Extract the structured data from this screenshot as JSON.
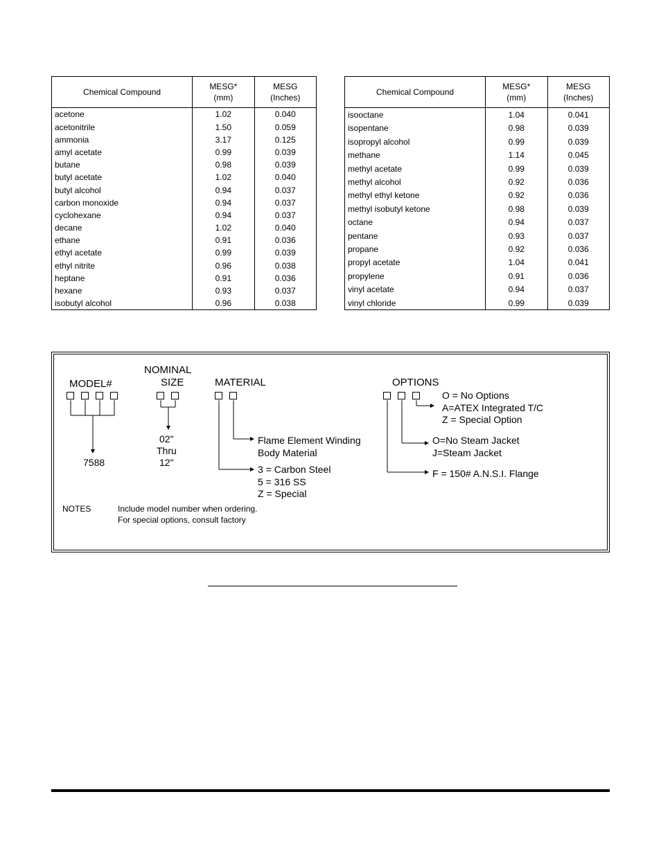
{
  "leftTable": {
    "headers": {
      "compound": "Chemical Compound",
      "mm": "MESG*\n(mm)",
      "in": "MESG\n(Inches)"
    },
    "rows": [
      {
        "c": "acetone",
        "mm": "1.02",
        "in": "0.040"
      },
      {
        "c": "acetonitrile",
        "mm": "1.50",
        "in": "0.059"
      },
      {
        "c": "ammonia",
        "mm": "3.17",
        "in": "0.125"
      },
      {
        "c": "amyl acetate",
        "mm": "0.99",
        "in": "0.039"
      },
      {
        "c": "butane",
        "mm": "0.98",
        "in": "0.039"
      },
      {
        "c": "butyl acetate",
        "mm": "1.02",
        "in": "0.040"
      },
      {
        "c": "butyl alcohol",
        "mm": "0.94",
        "in": "0.037"
      },
      {
        "c": "carbon monoxide",
        "mm": "0.94",
        "in": "0.037"
      },
      {
        "c": "cyclohexane",
        "mm": "0.94",
        "in": "0.037"
      },
      {
        "c": "decane",
        "mm": "1.02",
        "in": "0.040"
      },
      {
        "c": "ethane",
        "mm": "0.91",
        "in": "0.036"
      },
      {
        "c": "ethyl acetate",
        "mm": "0.99",
        "in": "0.039"
      },
      {
        "c": "ethyl nitrite",
        "mm": "0.96",
        "in": "0.038"
      },
      {
        "c": "heptane",
        "mm": "0.91",
        "in": "0.036"
      },
      {
        "c": "hexane",
        "mm": "0.93",
        "in": "0.037"
      },
      {
        "c": "isobutyl alcohol",
        "mm": "0.96",
        "in": "0.038"
      }
    ]
  },
  "rightTable": {
    "headers": {
      "compound": "Chemical Compound",
      "mm": "MESG*\n(mm)",
      "in": "MESG\n(Inches)"
    },
    "rows": [
      {
        "c": "isooctane",
        "mm": "1.04",
        "in": "0.041"
      },
      {
        "c": "isopentane",
        "mm": "0.98",
        "in": "0.039"
      },
      {
        "c": "isopropyl alcohol",
        "mm": "0.99",
        "in": "0.039"
      },
      {
        "c": "methane",
        "mm": "1.14",
        "in": "0.045"
      },
      {
        "c": "methyl acetate",
        "mm": "0.99",
        "in": "0.039"
      },
      {
        "c": "methyl alcohol",
        "mm": "0.92",
        "in": "0.036"
      },
      {
        "c": "methyl ethyl ketone",
        "mm": "0.92",
        "in": "0.036"
      },
      {
        "c": "methyl isobutyl ketone",
        "mm": "0.98",
        "in": "0.039"
      },
      {
        "c": "octane",
        "mm": "0.94",
        "in": "0.037"
      },
      {
        "c": "pentane",
        "mm": "0.93",
        "in": "0.037"
      },
      {
        "c": "propane",
        "mm": "0.92",
        "in": "0.036"
      },
      {
        "c": "propyl acetate",
        "mm": "1.04",
        "in": "0.041"
      },
      {
        "c": "propylene",
        "mm": "0.91",
        "in": "0.036"
      },
      {
        "c": "vinyl acetate",
        "mm": "0.94",
        "in": "0.037"
      },
      {
        "c": "vinyl chloride",
        "mm": "0.99",
        "in": "0.039"
      }
    ]
  },
  "modelBox": {
    "headings": {
      "model": "MODEL#",
      "nominal": "NOMINAL",
      "size": "SIZE",
      "material": "MATERIAL",
      "options": "OPTIONS"
    },
    "model_value": "7588",
    "size_top": "02\"",
    "size_mid": "Thru",
    "size_bot": "12\"",
    "flame": "Flame Element Winding",
    "bodymat": "Body Material",
    "bodymat_vals": "3 = Carbon Steel\n5 = 316 SS\nZ = Special",
    "options_list": "O = No Options\nA=ATEX Integrated T/C\nZ = Special Option",
    "options_mid": "O=No Steam Jacket\nJ=Steam Jacket",
    "options_f": "F = 150# A.N.S.I.  Flange",
    "notes_label": "NOTES",
    "notes_text": "Include model number when ordering.\nFor special options, consult factory"
  },
  "style": {
    "page_bg": "#ffffff",
    "text_color": "#000000",
    "border_color": "#000000",
    "body_font_size": 12,
    "heading_font_size": 15,
    "label_font_size": 14
  }
}
